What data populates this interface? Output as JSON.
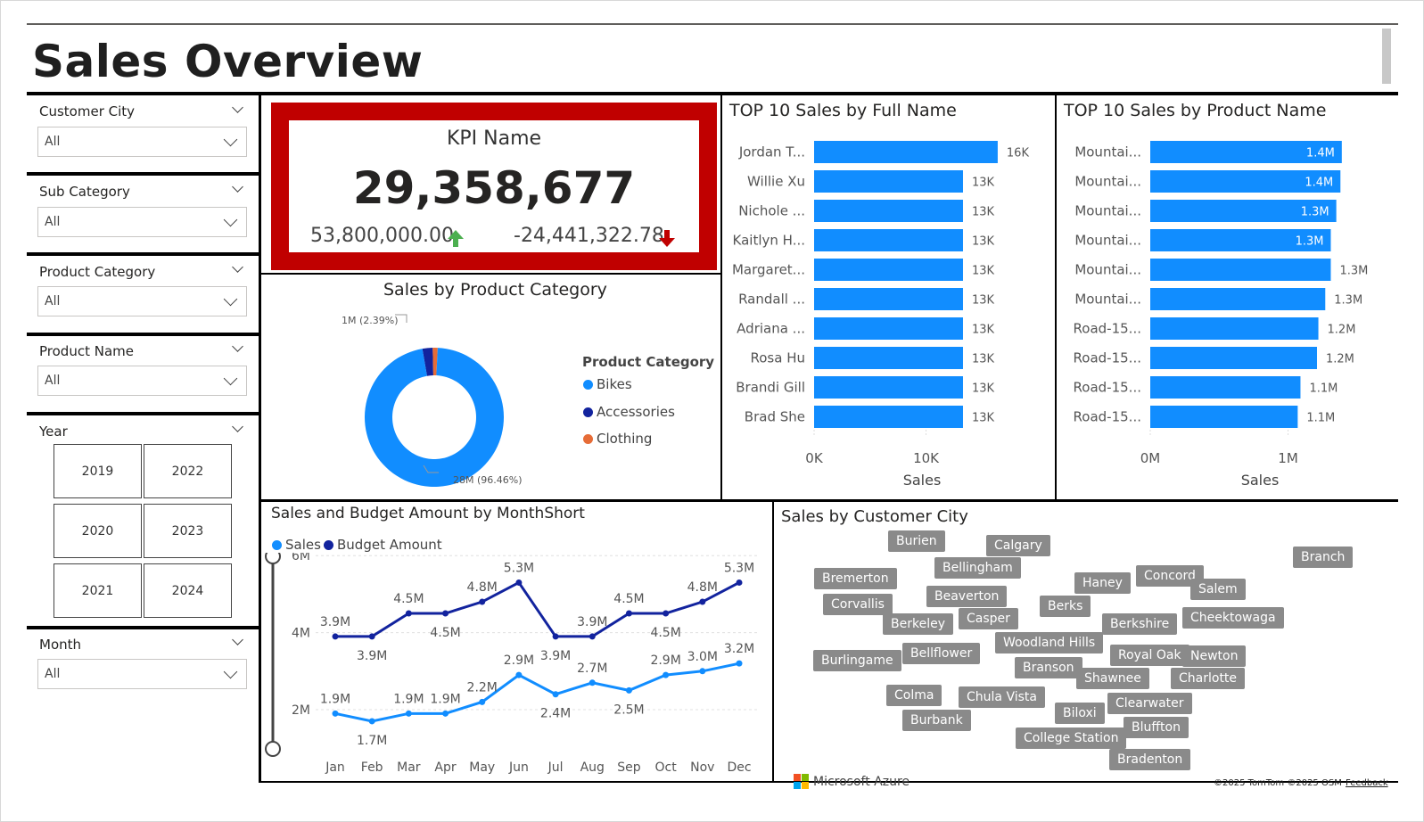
{
  "page": {
    "title": "Sales Overview"
  },
  "slicers": {
    "customer_city": {
      "label": "Customer City",
      "value": "All"
    },
    "sub_category": {
      "label": "Sub Category",
      "value": "All"
    },
    "product_category": {
      "label": "Product Category",
      "value": "All"
    },
    "product_name": {
      "label": "Product Name",
      "value": "All"
    },
    "year": {
      "label": "Year",
      "options": [
        "2019",
        "2022",
        "2020",
        "2023",
        "2021",
        "2024"
      ]
    },
    "month": {
      "label": "Month",
      "value": "All"
    }
  },
  "kpi": {
    "name": "KPI Name",
    "value": "29,358,677",
    "goal": "53,800,000.00",
    "variance": "-24,441,322.78",
    "goal_trend": "up",
    "variance_trend": "down",
    "frame_color": "#c00000",
    "up_color": "#4caf50",
    "down_color": "#c00000"
  },
  "colors": {
    "bar": "#118dff",
    "bikes": "#118dff",
    "accessories": "#12239e",
    "clothing": "#e66c37",
    "budget_line": "#12239e",
    "sales_line": "#118dff"
  },
  "chart_data": [
    {
      "type": "pie",
      "title": "Sales by Product Category",
      "legend_title": "Product Category",
      "legend_position": "right",
      "categories": [
        "Bikes",
        "Accessories",
        "Clothing"
      ],
      "values": [
        96.46,
        2.39,
        1.15
      ],
      "labels": [
        "28M (96.46%)",
        "1M (2.39%)"
      ]
    },
    {
      "type": "bar",
      "orientation": "horizontal",
      "title": "TOP 10 Sales by Full Name",
      "categories": [
        "Jordan T...",
        "Willie Xu",
        "Nichole ...",
        "Kaitlyn H...",
        "Margaret...",
        "Randall ...",
        "Adriana ...",
        "Rosa Hu",
        "Brandi Gill",
        "Brad She"
      ],
      "values": [
        16400,
        13300,
        13300,
        13300,
        13300,
        13300,
        13300,
        13300,
        13300,
        13300
      ],
      "value_labels": [
        "16K",
        "13K",
        "13K",
        "13K",
        "13K",
        "13K",
        "13K",
        "13K",
        "13K",
        "13K"
      ],
      "xlabel": "Sales",
      "xticks": [
        "0K",
        "10K"
      ],
      "xlim": [
        0,
        18000
      ]
    },
    {
      "type": "bar",
      "orientation": "horizontal",
      "title": "TOP 10 Sales by Product Name",
      "categories": [
        "Mountai...",
        "Mountai...",
        "Mountai...",
        "Mountai...",
        "Mountai...",
        "Mountai...",
        "Road-15...",
        "Road-15...",
        "Road-15...",
        "Road-15..."
      ],
      "values": [
        1390000,
        1380000,
        1350000,
        1310000,
        1310000,
        1270000,
        1220000,
        1210000,
        1090000,
        1070000
      ],
      "value_labels": [
        "1.4M",
        "1.4M",
        "1.3M",
        "1.3M",
        "1.3M",
        "1.3M",
        "1.2M",
        "1.2M",
        "1.1M",
        "1.1M"
      ],
      "xlabel": "Sales",
      "xticks": [
        "0M",
        "1M"
      ],
      "xlim": [
        0,
        1650000
      ]
    },
    {
      "type": "line",
      "title": "Sales and Budget Amount by MonthShort",
      "categories": [
        "Jan",
        "Feb",
        "Mar",
        "Apr",
        "May",
        "Jun",
        "Jul",
        "Aug",
        "Sep",
        "Oct",
        "Nov",
        "Dec"
      ],
      "series": [
        {
          "name": "Sales",
          "values": [
            1.9,
            1.7,
            1.9,
            1.9,
            2.2,
            2.9,
            2.4,
            2.7,
            2.5,
            2.9,
            3.0,
            3.2
          ],
          "labels": [
            "1.9M",
            "1.7M",
            "1.9M",
            "1.9M",
            "2.2M",
            "2.9M",
            "2.4M",
            "2.7M",
            "2.5M",
            "2.9M",
            "3.0M",
            "3.2M"
          ]
        },
        {
          "name": "Budget Amount",
          "values": [
            3.9,
            3.9,
            4.5,
            4.5,
            4.8,
            5.3,
            3.9,
            3.9,
            4.5,
            4.5,
            4.8,
            5.3
          ],
          "labels": [
            "3.9M",
            "3.9M",
            "4.5M",
            "4.5M",
            "4.8M",
            "5.3M",
            "3.9M",
            "3.9M",
            "4.5M",
            "4.5M",
            "4.8M",
            "5.3M"
          ]
        }
      ],
      "yticks": [
        "6M",
        "4M",
        "2M"
      ],
      "ylim": [
        0,
        6.6
      ],
      "legend_position": "top-left"
    }
  ],
  "map": {
    "title": "Sales by Customer City",
    "cities": [
      "Burien",
      "Calgary",
      "Bellingham",
      "Bremerton",
      "Beaverton",
      "Corvallis",
      "Berkeley",
      "Casper",
      "Haney",
      "Concord",
      "Salem",
      "Berks",
      "Berkshire",
      "Cheektowaga",
      "Branch",
      "Burlingame",
      "Bellflower",
      "Woodland Hills",
      "Royal Oak",
      "Newton",
      "Branson",
      "Shawnee",
      "Charlotte",
      "Colma",
      "Chula Vista",
      "Clearwater",
      "Biloxi",
      "Burbank",
      "Bluffton",
      "College Station",
      "Bradenton"
    ],
    "brand": "Microsoft Azure",
    "copyright": "©2025 TomTom  ©2025 OSM",
    "feedback": "Feedback"
  }
}
